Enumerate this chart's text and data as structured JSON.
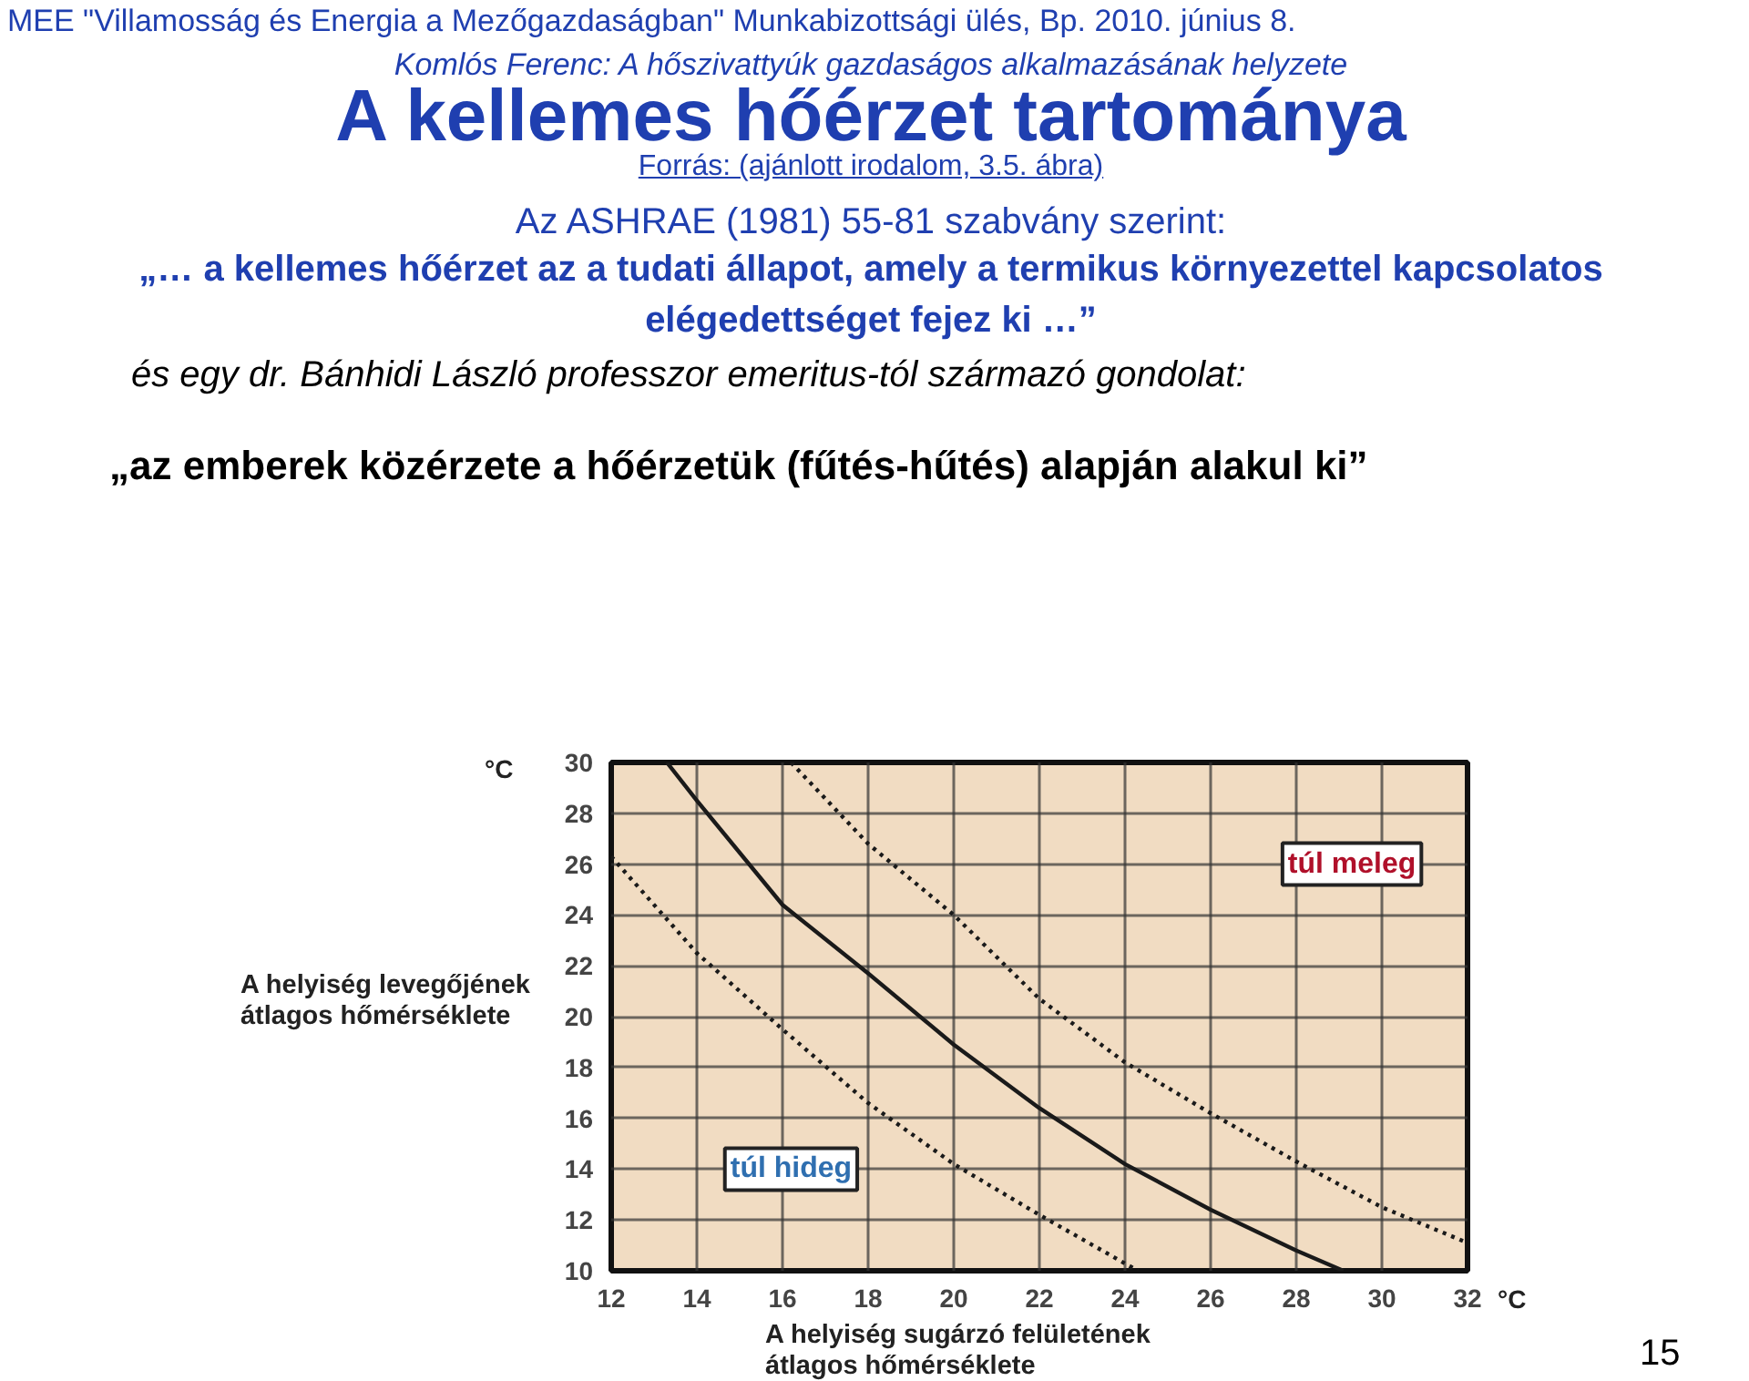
{
  "chart_data": {
    "type": "line",
    "title": "A kellemes hőérzet tartománya",
    "xlabel": "A helyiség sugárzó felületének átlagos hőmérséklete",
    "ylabel": "A helyiség levegőjének átlagos hőmérséklete",
    "annotations": [
      "MEE \"Villamosság és Energia a Mezőgazdaságban\" Munkabizottsági ülés, Bp. 2010. június 8.",
      "Komlós Ferenc: A hőszivattyúk gazdaságos alkalmazásának helyzete",
      "Forrás: (ajánlott irodalom, 3.5. ábra)",
      "Az ASHRAE (1981) 55-81 szabvány szerint:",
      "„… a kellemes hőérzet az a tudati állapot, amely a termikus környezettel kapcsolatos elégedettséget fejez ki …”",
      "és egy dr. Bánhidi László professzor emeritus-tól származó gondolat:",
      "„az emberek közérzete a hőérzetük (fűtés-hűtés) alapján alakul ki”",
      "°C",
      "°C",
      "15",
      "túl meleg",
      "túl hideg"
    ],
    "series": [
      {
        "color": "#1a1a1a",
        "line_style": "solid",
        "x": [
          13.3,
          14,
          16,
          18,
          20,
          22,
          24,
          26,
          28,
          29.1
        ],
        "values": [
          30,
          28.5,
          24.4,
          21.7,
          18.9,
          16.4,
          14.2,
          12.4,
          10.8,
          10
        ]
      },
      {
        "color": "#1a1a1a",
        "line_style": "dotted",
        "x": [
          12,
          14,
          16,
          18,
          20,
          22,
          24.3
        ],
        "values": [
          26.3,
          22.5,
          19.5,
          16.6,
          14.2,
          12.2,
          10
        ]
      },
      {
        "color": "#1a1a1a",
        "line_style": "dotted",
        "x": [
          16.2,
          18,
          20,
          22,
          24,
          26,
          28,
          30,
          32
        ],
        "values": [
          30,
          26.8,
          24,
          20.7,
          18.2,
          16.2,
          14.3,
          12.5,
          11.1
        ]
      }
    ],
    "xlim": [
      12,
      32
    ],
    "ylim": [
      10,
      30
    ],
    "xticks": [
      12,
      14,
      16,
      18,
      20,
      22,
      24,
      26,
      28,
      30,
      32
    ],
    "yticks": [
      10,
      12,
      14,
      16,
      18,
      20,
      22,
      24,
      26,
      28,
      30
    ],
    "grid": true,
    "marker": "none"
  }
}
